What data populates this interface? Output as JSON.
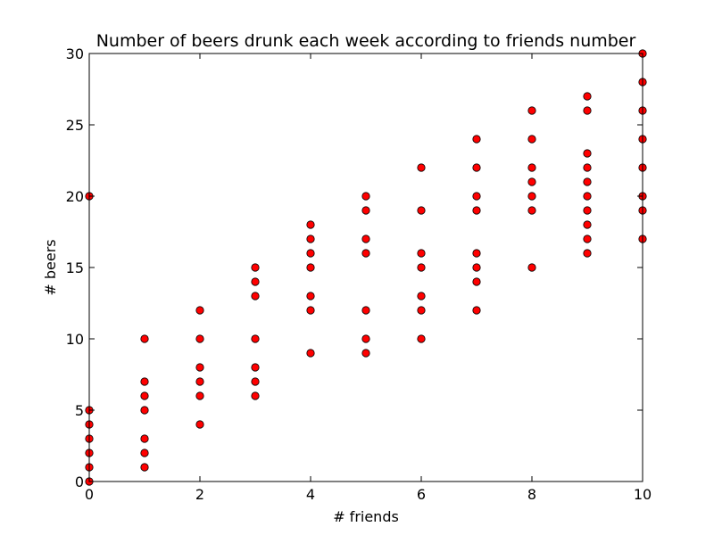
{
  "chart_data": {
    "type": "scatter",
    "title": "Number of beers drunk each week according to friends number",
    "xlabel": "# friends",
    "ylabel": "# beers",
    "xlim": [
      0,
      10
    ],
    "ylim": [
      0,
      30
    ],
    "xticks": [
      0,
      2,
      4,
      6,
      8,
      10
    ],
    "yticks": [
      0,
      5,
      10,
      15,
      20,
      25,
      30
    ],
    "grid": false,
    "marker_color": "#ff0000",
    "marker_edge_color": "#000000",
    "points": [
      [
        0,
        0
      ],
      [
        0,
        1
      ],
      [
        0,
        2
      ],
      [
        0,
        3
      ],
      [
        0,
        4
      ],
      [
        0,
        5
      ],
      [
        0,
        20
      ],
      [
        1,
        1
      ],
      [
        1,
        2
      ],
      [
        1,
        3
      ],
      [
        1,
        5
      ],
      [
        1,
        6
      ],
      [
        1,
        7
      ],
      [
        1,
        10
      ],
      [
        2,
        4
      ],
      [
        2,
        6
      ],
      [
        2,
        7
      ],
      [
        2,
        8
      ],
      [
        2,
        10
      ],
      [
        2,
        12
      ],
      [
        3,
        6
      ],
      [
        3,
        7
      ],
      [
        3,
        8
      ],
      [
        3,
        10
      ],
      [
        3,
        13
      ],
      [
        3,
        14
      ],
      [
        3,
        15
      ],
      [
        4,
        9
      ],
      [
        4,
        12
      ],
      [
        4,
        13
      ],
      [
        4,
        15
      ],
      [
        4,
        16
      ],
      [
        4,
        17
      ],
      [
        4,
        18
      ],
      [
        5,
        9
      ],
      [
        5,
        10
      ],
      [
        5,
        12
      ],
      [
        5,
        16
      ],
      [
        5,
        17
      ],
      [
        5,
        19
      ],
      [
        5,
        20
      ],
      [
        6,
        10
      ],
      [
        6,
        12
      ],
      [
        6,
        13
      ],
      [
        6,
        15
      ],
      [
        6,
        16
      ],
      [
        6,
        19
      ],
      [
        6,
        22
      ],
      [
        7,
        12
      ],
      [
        7,
        14
      ],
      [
        7,
        15
      ],
      [
        7,
        16
      ],
      [
        7,
        19
      ],
      [
        7,
        20
      ],
      [
        7,
        22
      ],
      [
        7,
        24
      ],
      [
        8,
        15
      ],
      [
        8,
        19
      ],
      [
        8,
        20
      ],
      [
        8,
        21
      ],
      [
        8,
        22
      ],
      [
        8,
        24
      ],
      [
        8,
        26
      ],
      [
        9,
        16
      ],
      [
        9,
        17
      ],
      [
        9,
        18
      ],
      [
        9,
        19
      ],
      [
        9,
        20
      ],
      [
        9,
        21
      ],
      [
        9,
        22
      ],
      [
        9,
        23
      ],
      [
        9,
        26
      ],
      [
        9,
        27
      ],
      [
        10,
        17
      ],
      [
        10,
        19
      ],
      [
        10,
        20
      ],
      [
        10,
        22
      ],
      [
        10,
        24
      ],
      [
        10,
        26
      ],
      [
        10,
        28
      ],
      [
        10,
        30
      ]
    ]
  }
}
